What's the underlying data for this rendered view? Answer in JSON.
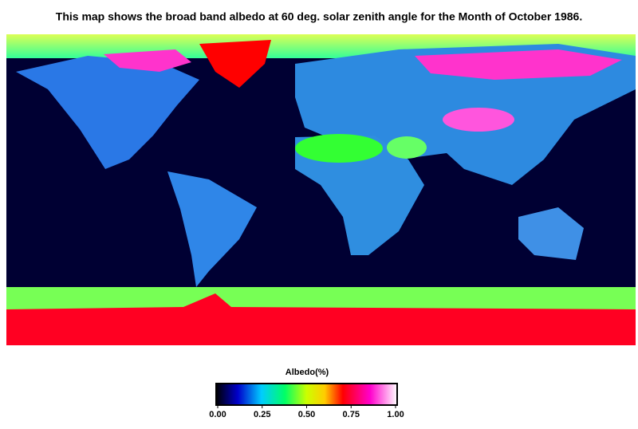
{
  "title": "This map shows the broad band albedo at 60 deg. solar zenith angle for the Month of October 1986.",
  "colorbar": {
    "label": "Albedo(%)",
    "lim": [
      0,
      1
    ],
    "ticks": [
      {
        "value": 0,
        "label": "0.00"
      },
      {
        "value": 0.25,
        "label": "0.25"
      },
      {
        "value": 0.5,
        "label": "0.50"
      },
      {
        "value": 0.75,
        "label": "0.75"
      },
      {
        "value": 1,
        "label": "1.00"
      }
    ]
  }
}
